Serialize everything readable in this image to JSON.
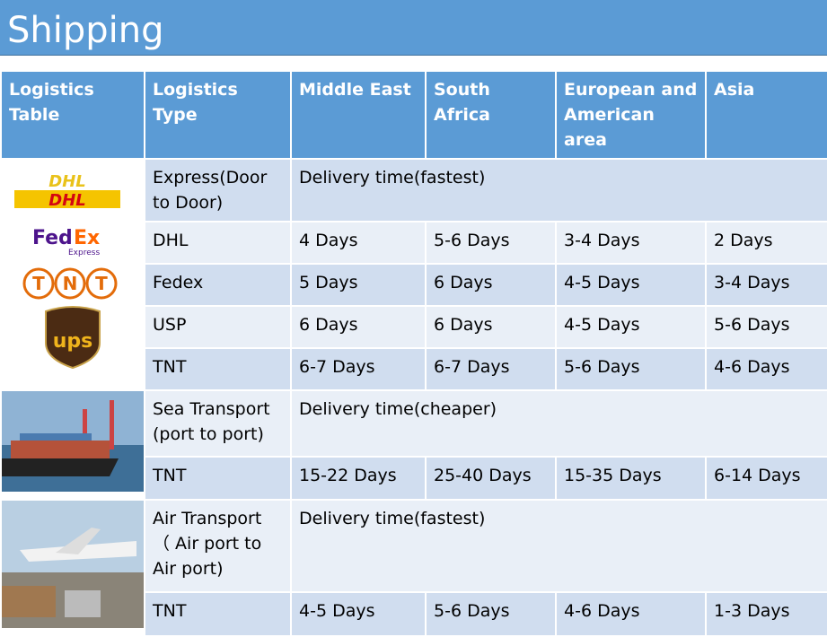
{
  "title": "Shipping",
  "headers": [
    "Logistics Table",
    "Logistics Type",
    "Middle East",
    "South Africa",
    "European and American area",
    "Asia"
  ],
  "logos": [
    "DHL",
    "FedEx",
    "TNT",
    "UPS"
  ],
  "express": {
    "type": "Express(Door to Door)",
    "note": "Delivery time(fastest)",
    "rows": [
      [
        "DHL",
        "4 Days",
        "5-6 Days",
        "3-4 Days",
        "2 Days"
      ],
      [
        "Fedex",
        "5 Days",
        "6 Days",
        "4-5 Days",
        "3-4 Days"
      ],
      [
        "USP",
        "6 Days",
        "6 Days",
        "4-5 Days",
        "5-6 Days"
      ],
      [
        "TNT",
        "6-7 Days",
        "6-7 Days",
        "5-6 Days",
        "4-6 Days"
      ]
    ]
  },
  "sea": {
    "type": "Sea Transport (port to port)",
    "note": "Delivery time(cheaper)",
    "row": [
      "TNT",
      "15-22 Days",
      "25-40 Days",
      "15-35 Days",
      "6-14 Days"
    ]
  },
  "air": {
    "type": "Air Transport （ Air port to Air port)",
    "note": "Delivery time(fastest)",
    "row": [
      "TNT",
      "4-5 Days",
      "5-6 Days",
      "4-6 Days",
      "1-3 Days"
    ]
  }
}
